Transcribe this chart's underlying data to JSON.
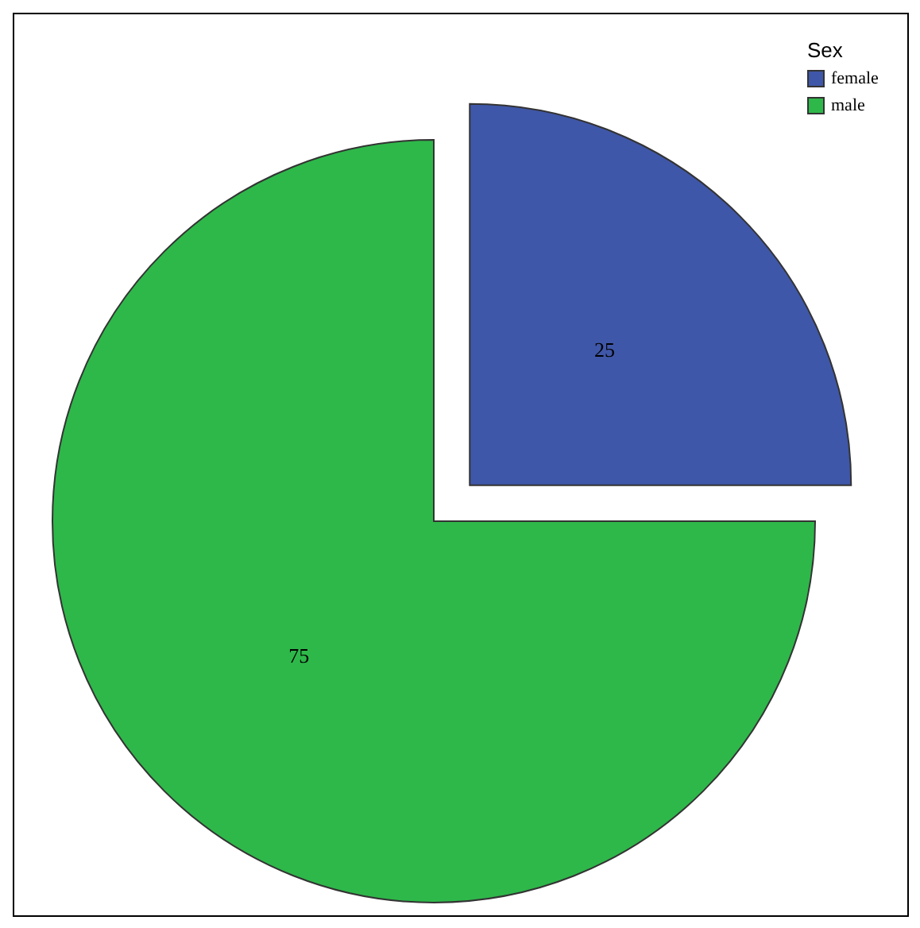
{
  "chart_data": {
    "type": "pie",
    "legend_title": "Sex",
    "legend": "top right",
    "data_labels": true,
    "categories": [
      "female",
      "male"
    ],
    "values": [
      25,
      75
    ],
    "colors": [
      "#3f57a8",
      "#2eb84a"
    ]
  }
}
